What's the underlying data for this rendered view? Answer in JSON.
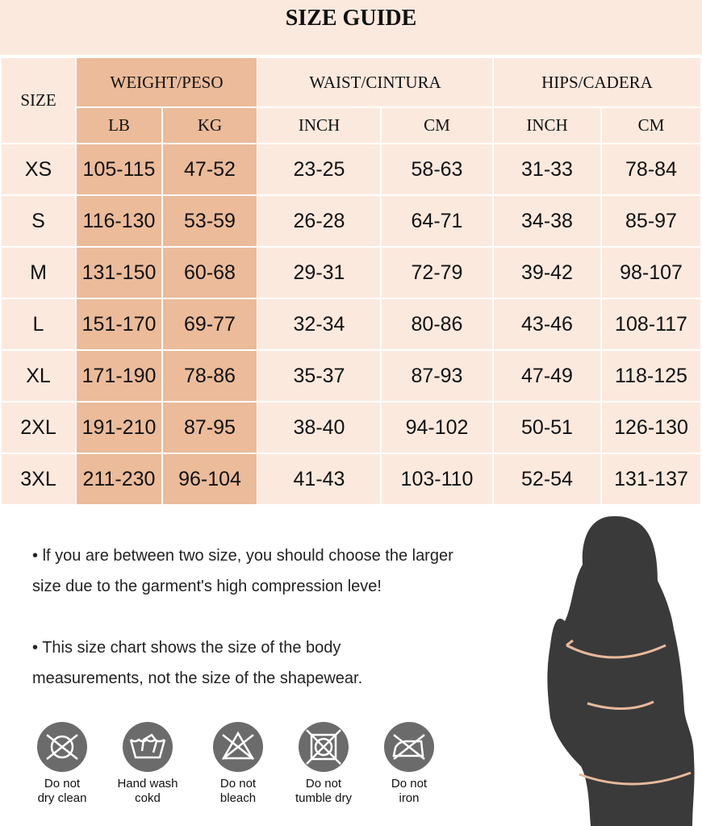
{
  "title": "SIZE GUIDE",
  "headers": {
    "size": "SIZE",
    "weight": "WEIGHT/PESO",
    "waist": "WAIST/CINTURA",
    "hips": "HIPS/CADERA",
    "lb": "LB",
    "kg": "KG",
    "waist_inch": "INCH",
    "waist_cm": "CM",
    "hips_inch": "INCH",
    "hips_cm": "CM"
  },
  "rows": [
    [
      "XS",
      "105-115",
      "47-52",
      "23-25",
      "58-63",
      "31-33",
      "78-84"
    ],
    [
      "S",
      "116-130",
      "53-59",
      "26-28",
      "64-71",
      "34-38",
      "85-97"
    ],
    [
      "M",
      "131-150",
      "60-68",
      "29-31",
      "72-79",
      "39-42",
      "98-107"
    ],
    [
      "L",
      "151-170",
      "69-77",
      "32-34",
      "80-86",
      "43-46",
      "108-117"
    ],
    [
      "XL",
      "171-190",
      "78-86",
      "35-37",
      "87-93",
      "47-49",
      "118-125"
    ],
    [
      "2XL",
      "191-210",
      "87-95",
      "38-40",
      "94-102",
      "50-51",
      "126-130"
    ],
    [
      "3XL",
      "211-230",
      "96-104",
      "41-43",
      "103-110",
      "52-54",
      "131-137"
    ]
  ],
  "notes": [
    "lf you are between two size, you should choose the larger size due to the garment's high compression leve!",
    "This size chart shows the size of the body measurements, not the size of the shapewear."
  ],
  "care": [
    {
      "icon": "no-dry-clean-icon",
      "label1": "Do not",
      "label2": "dry clean"
    },
    {
      "icon": "hand-wash-icon",
      "label1": "Hand wash",
      "label2": "cokd"
    },
    {
      "icon": "no-bleach-icon",
      "label1": "Do not",
      "label2": "bleach"
    },
    {
      "icon": "no-tumble-dry-icon",
      "label1": "Do not",
      "label2": "tumble dry"
    },
    {
      "icon": "no-iron-icon",
      "label1": "Do not",
      "label2": "iron"
    }
  ],
  "colors": {
    "background": "#fce9de",
    "weight_column": "#ebbb9a",
    "icon": "#6b6b6b",
    "silhouette": "#3a3a3a",
    "measure_line": "#e9b99a"
  }
}
